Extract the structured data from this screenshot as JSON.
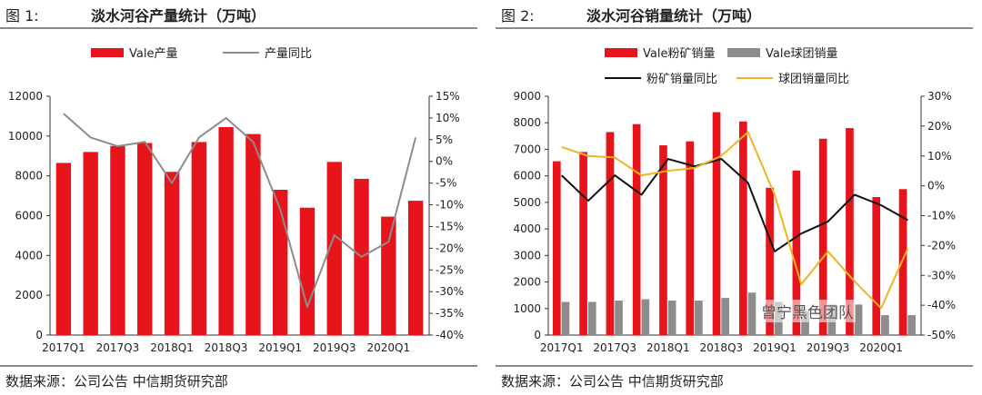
{
  "figures": [
    {
      "label": "图 1:",
      "title": "淡水河谷产量统计（万吨）",
      "source": "数据来源：公司公告  中信期货研究部",
      "chart_data": {
        "type": "bar+line",
        "categories": [
          "2017Q1",
          "2017Q2",
          "2017Q3",
          "2017Q4",
          "2018Q1",
          "2018Q2",
          "2018Q3",
          "2018Q4",
          "2019Q1",
          "2019Q2",
          "2019Q3",
          "2019Q4",
          "2020Q1",
          "2020Q2"
        ],
        "tick_labels": [
          "2017Q1",
          "2017Q3",
          "2018Q1",
          "2018Q3",
          "2019Q1",
          "2019Q3",
          "2020Q1"
        ],
        "bar_series": [
          {
            "name": "Vale产量",
            "color": "#e8141b",
            "values": [
              8650,
              9200,
              9500,
              9650,
              8200,
              9700,
              10450,
              10100,
              7300,
              6400,
              8700,
              7850,
              5950,
              6750
            ]
          }
        ],
        "line_series": [
          {
            "name": "产量同比",
            "color": "#8c8c8c",
            "values": [
              11,
              5.5,
              3.5,
              4.5,
              -5,
              5.5,
              10,
              4.5,
              -11,
              -33.5,
              -17,
              -22,
              -18.5,
              5.5
            ]
          }
        ],
        "y_left": {
          "min": 0,
          "max": 12000,
          "ticks": [
            "0",
            "2000",
            "4000",
            "6000",
            "8000",
            "10000",
            "12000"
          ]
        },
        "y_right": {
          "min": -40,
          "max": 15,
          "ticks": [
            "15%",
            "10%",
            "5%",
            "0%",
            "-5%",
            "-10%",
            "-15%",
            "-20%",
            "-25%",
            "-30%",
            "-35%",
            "-40%"
          ]
        }
      }
    },
    {
      "label": "图 2:",
      "title": "淡水河谷销量统计（万吨）",
      "source": "数据来源：公司公告  中信期货研究部",
      "watermark": "曾宁黑色团队",
      "chart_data": {
        "type": "bar+line",
        "categories": [
          "2017Q1",
          "2017Q2",
          "2017Q3",
          "2017Q4",
          "2018Q1",
          "2018Q2",
          "2018Q3",
          "2018Q4",
          "2019Q1",
          "2019Q2",
          "2019Q3",
          "2019Q4",
          "2020Q1",
          "2020Q2"
        ],
        "tick_labels": [
          "2017Q1",
          "2017Q3",
          "2018Q1",
          "2018Q3",
          "2019Q1",
          "2019Q3",
          "2020Q1"
        ],
        "bar_series": [
          {
            "name": "Vale粉矿销量",
            "color": "#e8141b",
            "values": [
              6550,
              6900,
              7650,
              7950,
              7150,
              7300,
              8400,
              8050,
              5550,
              6200,
              7400,
              7800,
              5200,
              5500
            ]
          },
          {
            "name": "Vale球团销量",
            "color": "#8c8c8c",
            "values": [
              1250,
              1250,
              1300,
              1350,
              1300,
              1300,
              1400,
              1600,
              1250,
              900,
              1150,
              1150,
              750,
              750
            ]
          }
        ],
        "line_series": [
          {
            "name": "粉矿销量同比",
            "color": "#111111",
            "values": [
              3.5,
              -5,
              3.5,
              -3,
              9,
              6.5,
              9,
              1,
              -22,
              -16,
              -12,
              -3,
              -6.5,
              -11.5
            ]
          },
          {
            "name": "球团销量同比",
            "color": "#f0b323",
            "values": [
              13,
              10,
              9.5,
              3.5,
              5,
              6,
              10,
              18,
              -3,
              -33,
              -22,
              -32,
              -41,
              -21
            ]
          }
        ],
        "y_left": {
          "min": 0,
          "max": 9000,
          "ticks": [
            "0",
            "1000",
            "2000",
            "3000",
            "4000",
            "5000",
            "6000",
            "7000",
            "8000",
            "9000"
          ]
        },
        "y_right": {
          "min": -50,
          "max": 30,
          "ticks": [
            "30%",
            "20%",
            "10%",
            "0%",
            "-10%",
            "-20%",
            "-30%",
            "-40%",
            "-50%"
          ]
        }
      }
    }
  ]
}
